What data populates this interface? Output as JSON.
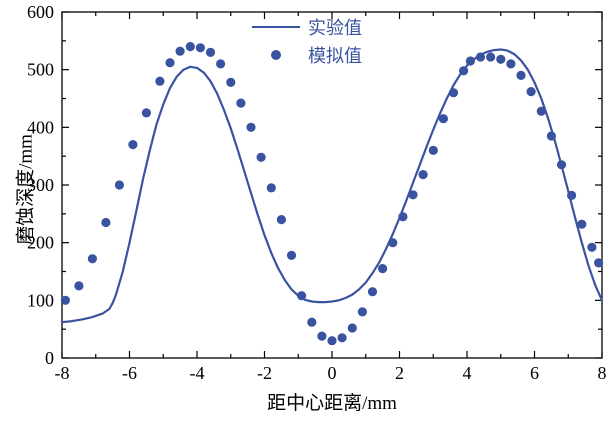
{
  "figure": {
    "xlabel": "距中心距离/mm",
    "ylabel": "磨蚀深度/mm"
  },
  "colors": {
    "series": "#3A53A0",
    "axis": "#000000",
    "background": "#FFFFFF"
  },
  "chart_data": {
    "type": "line",
    "title": "",
    "xlabel": "距中心距离/mm",
    "ylabel": "磨蚀深度/mm",
    "xlim": [
      -8,
      8
    ],
    "ylim": [
      0,
      600
    ],
    "x_ticks": [
      -8,
      -6,
      -4,
      -2,
      0,
      2,
      4,
      6,
      8
    ],
    "x_minor_ticks": [
      -7,
      -5,
      -3,
      -1,
      1,
      3,
      5,
      7
    ],
    "y_ticks": [
      0,
      100,
      200,
      300,
      400,
      500,
      600
    ],
    "y_minor_ticks": [
      50,
      150,
      250,
      350,
      450,
      550
    ],
    "grid": false,
    "legend_position": "top-center-inside",
    "series": [
      {
        "name": "实验值",
        "type": "line",
        "color": "#3A53A0",
        "points": [
          [
            -8,
            62
          ],
          [
            -7.7,
            64
          ],
          [
            -7.4,
            67
          ],
          [
            -7.1,
            71
          ],
          [
            -6.8,
            77
          ],
          [
            -6.6,
            85
          ],
          [
            -6.5,
            95
          ],
          [
            -6.4,
            110
          ],
          [
            -6.2,
            150
          ],
          [
            -6,
            200
          ],
          [
            -5.8,
            255
          ],
          [
            -5.6,
            310
          ],
          [
            -5.4,
            360
          ],
          [
            -5.2,
            405
          ],
          [
            -5,
            440
          ],
          [
            -4.8,
            468
          ],
          [
            -4.6,
            488
          ],
          [
            -4.4,
            500
          ],
          [
            -4.2,
            505
          ],
          [
            -4,
            503
          ],
          [
            -3.8,
            495
          ],
          [
            -3.6,
            480
          ],
          [
            -3.4,
            458
          ],
          [
            -3.2,
            430
          ],
          [
            -3,
            398
          ],
          [
            -2.8,
            362
          ],
          [
            -2.6,
            324
          ],
          [
            -2.4,
            286
          ],
          [
            -2.2,
            248
          ],
          [
            -2,
            213
          ],
          [
            -1.8,
            182
          ],
          [
            -1.6,
            156
          ],
          [
            -1.4,
            135
          ],
          [
            -1.2,
            119
          ],
          [
            -1,
            108
          ],
          [
            -0.8,
            101
          ],
          [
            -0.6,
            98
          ],
          [
            -0.4,
            97
          ],
          [
            -0.2,
            97
          ],
          [
            0,
            98
          ],
          [
            0.2,
            100
          ],
          [
            0.4,
            104
          ],
          [
            0.6,
            110
          ],
          [
            0.8,
            119
          ],
          [
            1,
            131
          ],
          [
            1.2,
            147
          ],
          [
            1.4,
            166
          ],
          [
            1.6,
            189
          ],
          [
            1.8,
            215
          ],
          [
            2,
            243
          ],
          [
            2.2,
            273
          ],
          [
            2.4,
            304
          ],
          [
            2.6,
            335
          ],
          [
            2.8,
            366
          ],
          [
            3,
            396
          ],
          [
            3.2,
            424
          ],
          [
            3.4,
            450
          ],
          [
            3.6,
            473
          ],
          [
            3.8,
            492
          ],
          [
            4,
            507
          ],
          [
            4.2,
            518
          ],
          [
            4.4,
            526
          ],
          [
            4.6,
            531
          ],
          [
            4.8,
            534
          ],
          [
            5,
            535
          ],
          [
            5.2,
            533
          ],
          [
            5.4,
            527
          ],
          [
            5.6,
            516
          ],
          [
            5.8,
            500
          ],
          [
            6,
            478
          ],
          [
            6.2,
            450
          ],
          [
            6.4,
            416
          ],
          [
            6.6,
            377
          ],
          [
            6.8,
            334
          ],
          [
            7,
            289
          ],
          [
            7.2,
            244
          ],
          [
            7.4,
            200
          ],
          [
            7.6,
            160
          ],
          [
            7.8,
            126
          ],
          [
            8,
            100
          ]
        ]
      },
      {
        "name": "模拟值",
        "type": "scatter",
        "color": "#3A53A0",
        "points": [
          [
            -7.9,
            100
          ],
          [
            -7.5,
            125
          ],
          [
            -7.1,
            172
          ],
          [
            -6.7,
            235
          ],
          [
            -6.3,
            300
          ],
          [
            -5.9,
            370
          ],
          [
            -5.5,
            425
          ],
          [
            -5.1,
            480
          ],
          [
            -4.8,
            512
          ],
          [
            -4.5,
            532
          ],
          [
            -4.2,
            540
          ],
          [
            -3.9,
            538
          ],
          [
            -3.6,
            530
          ],
          [
            -3.3,
            510
          ],
          [
            -3,
            478
          ],
          [
            -2.7,
            442
          ],
          [
            -2.4,
            400
          ],
          [
            -2.1,
            348
          ],
          [
            -1.8,
            295
          ],
          [
            -1.5,
            240
          ],
          [
            -1.2,
            178
          ],
          [
            -0.9,
            108
          ],
          [
            -0.6,
            62
          ],
          [
            -0.3,
            38
          ],
          [
            0,
            30
          ],
          [
            0.3,
            35
          ],
          [
            0.6,
            52
          ],
          [
            0.9,
            80
          ],
          [
            1.2,
            115
          ],
          [
            1.5,
            155
          ],
          [
            1.8,
            200
          ],
          [
            2.1,
            245
          ],
          [
            2.4,
            283
          ],
          [
            2.7,
            318
          ],
          [
            3,
            360
          ],
          [
            3.3,
            415
          ],
          [
            3.6,
            460
          ],
          [
            3.9,
            498
          ],
          [
            4.1,
            515
          ],
          [
            4.4,
            522
          ],
          [
            4.7,
            522
          ],
          [
            5,
            518
          ],
          [
            5.3,
            510
          ],
          [
            5.6,
            490
          ],
          [
            5.9,
            462
          ],
          [
            6.2,
            428
          ],
          [
            6.5,
            385
          ],
          [
            6.8,
            335
          ],
          [
            7.1,
            282
          ],
          [
            7.4,
            232
          ],
          [
            7.7,
            192
          ],
          [
            7.9,
            165
          ]
        ]
      }
    ]
  }
}
